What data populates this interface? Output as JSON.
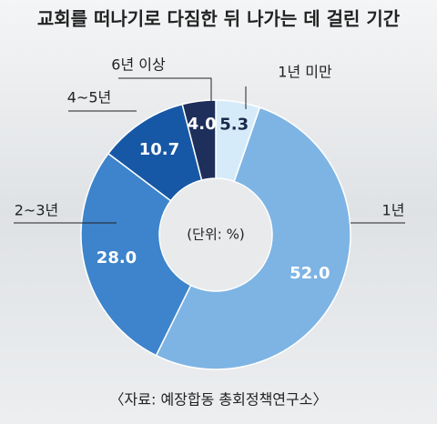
{
  "chart_data": {
    "type": "donut",
    "title": "교회를 떠나기로 다짐한 뒤 나가는 데 걸린 기간",
    "unit_note": "(단위: %)",
    "source": "〈자료: 예장합동 총회정책연구소〉",
    "categories": [
      "1년 미만",
      "1년",
      "2~3년",
      "4~5년",
      "6년 이상"
    ],
    "values": [
      5.3,
      52.0,
      28.0,
      10.7,
      4.0
    ],
    "value_labels": [
      "5.3",
      "52.0",
      "28.0",
      "10.7",
      "4.0"
    ],
    "colors": [
      "#d6ebfa",
      "#7db4e4",
      "#3d84cc",
      "#1758a6",
      "#1f2f5c"
    ]
  }
}
